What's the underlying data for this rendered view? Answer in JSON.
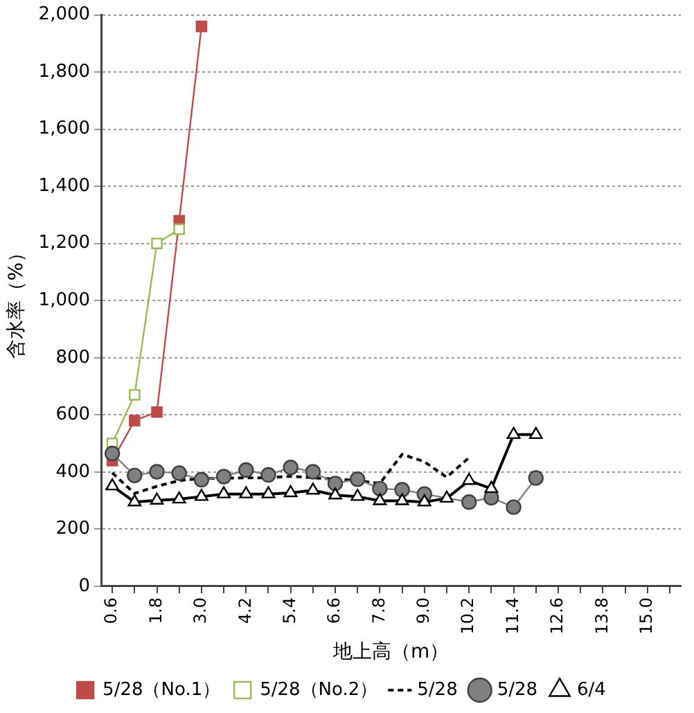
{
  "chart_data": {
    "type": "line",
    "xlabel": "地上高（m）",
    "ylabel": "含水率（%）",
    "categories": [
      "0.6",
      null,
      "1.8",
      null,
      "3.0",
      null,
      "4.2",
      null,
      "5.4",
      null,
      "6.6",
      null,
      "7.8",
      null,
      "9.0",
      null,
      "10.2",
      null,
      "11.4",
      null,
      "12.6",
      null,
      "13.8",
      null,
      "15.0",
      null
    ],
    "ylim": [
      0,
      2000
    ],
    "yticks": [
      0,
      200,
      400,
      600,
      800,
      {
        "value": 1000,
        "label": "1,000"
      },
      {
        "value": 1200,
        "label": "1,200"
      },
      {
        "value": 1400,
        "label": "1,400"
      },
      {
        "value": 1600,
        "label": "1,600"
      },
      {
        "value": 1800,
        "label": "1,800"
      },
      {
        "value": 2000,
        "label": "2,000"
      }
    ],
    "grid": "y",
    "legend": "bottom",
    "series": [
      {
        "name": "5/28（No.1）",
        "color": "#be4b48",
        "marker": "square",
        "line_style": "solid",
        "values": [
          440,
          580,
          610,
          1280,
          1960,
          null,
          null,
          null,
          null,
          null,
          null,
          null,
          null,
          null,
          null,
          null,
          null,
          null,
          null,
          null,
          null,
          null,
          null,
          null,
          null,
          null
        ]
      },
      {
        "name": "5/28（No.2）",
        "color": "#9bbb59",
        "marker": "square",
        "line_style": "solid",
        "values": [
          500,
          670,
          1200,
          1250,
          null,
          null,
          null,
          null,
          null,
          null,
          null,
          null,
          null,
          null,
          null,
          null,
          null,
          null,
          null,
          null,
          null,
          null,
          null,
          null,
          null,
          null
        ]
      },
      {
        "name": "5/28",
        "color": "#000000",
        "marker": "none",
        "line_style": "dashed",
        "values": [
          397,
          325,
          350,
          370,
          378,
          378,
          380,
          380,
          385,
          380,
          375,
          370,
          360,
          462,
          436,
          382,
          450,
          null,
          null,
          null,
          null,
          null,
          null,
          null,
          null,
          null
        ]
      },
      {
        "name": "5/28",
        "color": "#808080",
        "marker": "circle",
        "line_style": "solid",
        "values": [
          465,
          388,
          401,
          396,
          373,
          384,
          407,
          390,
          416,
          401,
          360,
          375,
          342,
          338,
          323,
          null,
          295,
          310,
          277,
          379,
          null,
          null,
          null,
          null,
          null,
          null
        ]
      },
      {
        "name": "6/4",
        "color": "#000000",
        "marker": "triangle",
        "line_style": "solid",
        "values": [
          351,
          295,
          301,
          305,
          314,
          323,
          323,
          323,
          327,
          336,
          319,
          314,
          299,
          299,
          295,
          308,
          370,
          342,
          531,
          531,
          null,
          null,
          null,
          null,
          null,
          null
        ]
      }
    ]
  }
}
